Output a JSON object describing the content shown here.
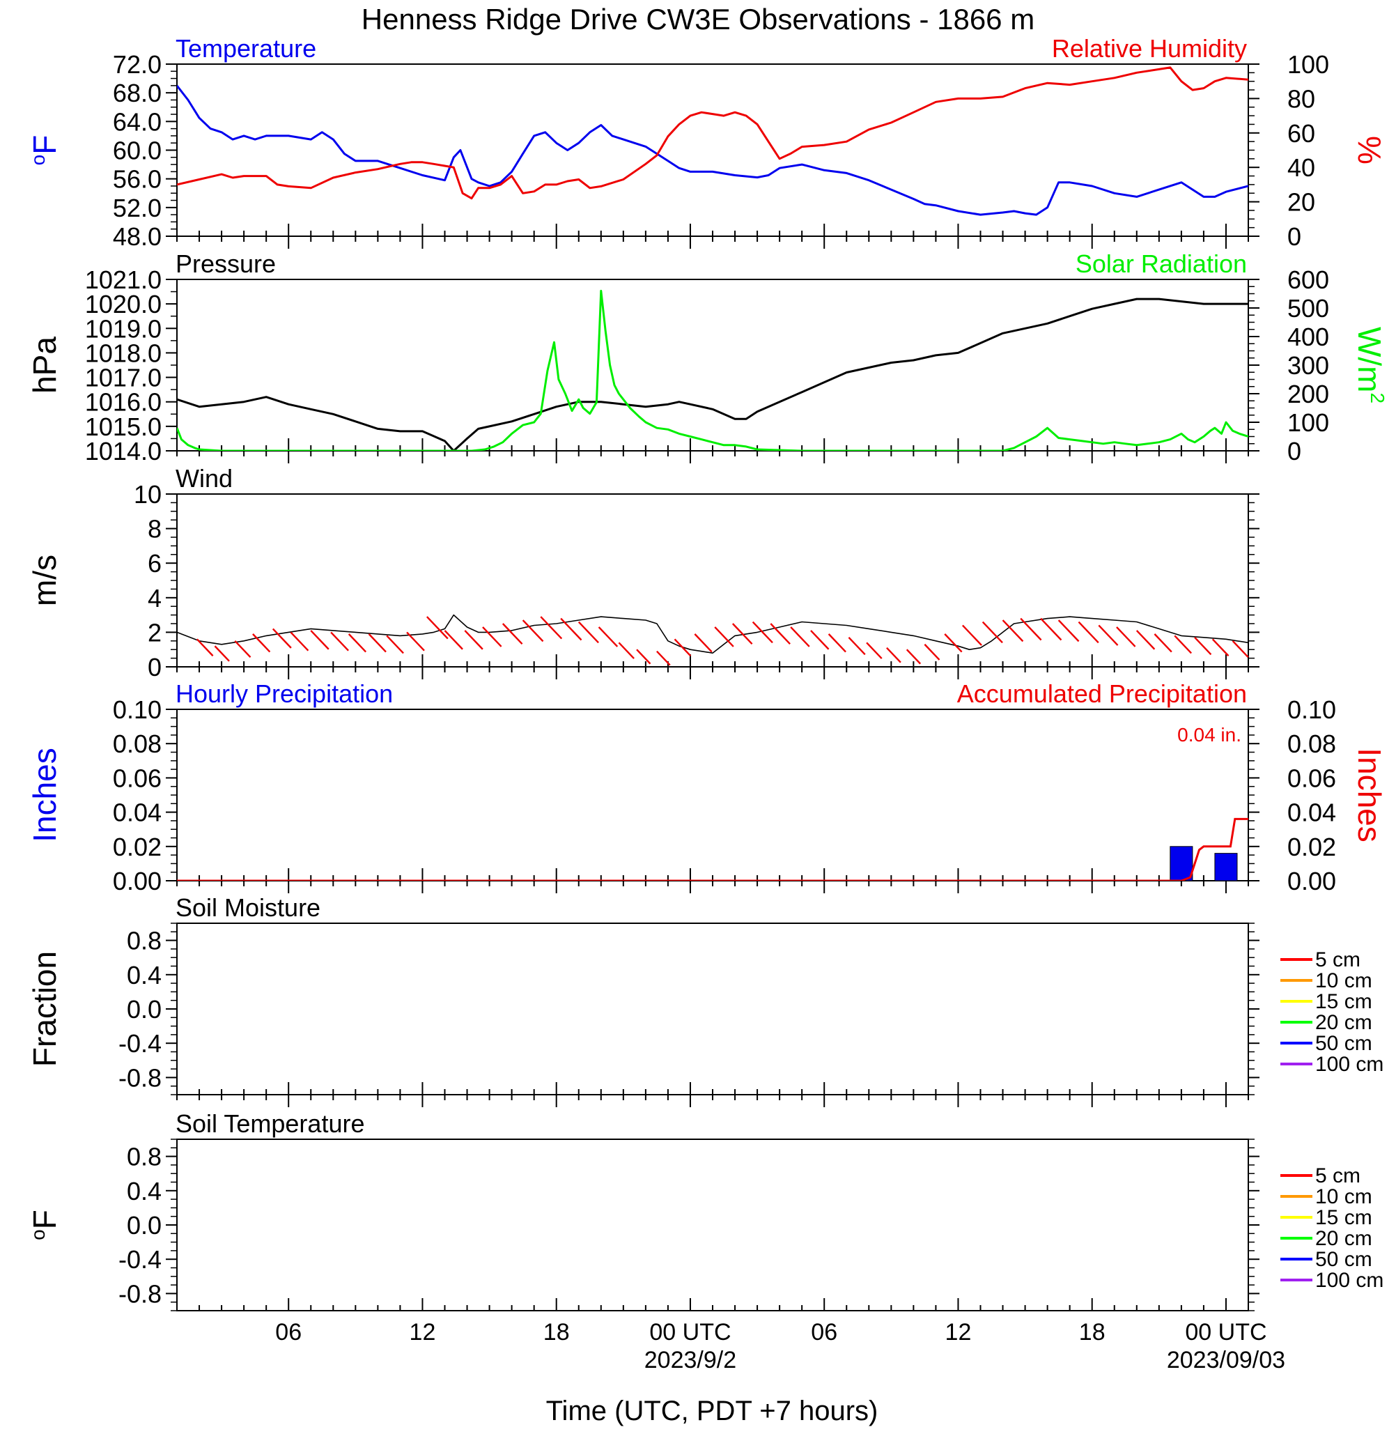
{
  "title": "Henness Ridge Drive CW3E Observations - 1866 m",
  "x_axis": {
    "label": "Time (UTC, PDT +7 hours)",
    "range_hours": [
      0,
      48
    ],
    "ticks": [
      {
        "h": 5,
        "label": "06"
      },
      {
        "h": 11,
        "label": "12"
      },
      {
        "h": 17,
        "label": "18"
      },
      {
        "h": 23,
        "label": "00 UTC"
      },
      {
        "h": 29,
        "label": "06"
      },
      {
        "h": 35,
        "label": "12"
      },
      {
        "h": 41,
        "label": "18"
      },
      {
        "h": 47,
        "label": "00 UTC"
      }
    ],
    "dates": [
      {
        "h": 23,
        "label": "2023/9/2"
      },
      {
        "h": 47,
        "label": "2023/09/03"
      }
    ]
  },
  "colors": {
    "blue": "#0000ee",
    "red": "#ee0000",
    "green": "#00ee00",
    "black": "#000000"
  },
  "legend_items": [
    {
      "label": "5 cm",
      "color": "#ff0000"
    },
    {
      "label": "10 cm",
      "color": "#ff9900"
    },
    {
      "label": "15 cm",
      "color": "#ffff00"
    },
    {
      "label": "20 cm",
      "color": "#00ff00"
    },
    {
      "label": "50 cm",
      "color": "#0000ff"
    },
    {
      "label": "100 cm",
      "color": "#a020f0"
    }
  ],
  "chart_data": [
    {
      "id": "temp_rh",
      "type": "line",
      "left_title": "Temperature",
      "right_title": "Relative Humidity",
      "left_unit": "oF",
      "right_unit": "%",
      "left_ylim": [
        48,
        72
      ],
      "left_ticks": [
        "72.0",
        "68.0",
        "64.0",
        "60.0",
        "56.0",
        "52.0",
        "48.0"
      ],
      "right_ylim": [
        0,
        100
      ],
      "right_ticks": [
        "100",
        "80",
        "60",
        "40",
        "20",
        "0"
      ],
      "series": [
        {
          "name": "Temperature",
          "axis": "left",
          "color": "#0000ee",
          "x": [
            0,
            0.5,
            1,
            1.5,
            2,
            2.5,
            3,
            3.5,
            4,
            5,
            6,
            6.5,
            7,
            7.5,
            8,
            9,
            10,
            11,
            12,
            12.4,
            12.7,
            13.2,
            13.5,
            14,
            14.5,
            15,
            15.5,
            16,
            16.5,
            17,
            17.5,
            18,
            18.5,
            19,
            19.5,
            20,
            21,
            22,
            22.5,
            23,
            24,
            25,
            26,
            26.5,
            27,
            28,
            29,
            30,
            31,
            32,
            33,
            33.5,
            34,
            35,
            36,
            37,
            37.5,
            38,
            38.5,
            39,
            39.5,
            40,
            41,
            42,
            43,
            44,
            45,
            46,
            46.5,
            47,
            48
          ],
          "y": [
            69,
            67,
            64.5,
            63,
            62.5,
            61.5,
            62,
            61.5,
            62,
            62,
            61.5,
            62.5,
            61.5,
            59.5,
            58.5,
            58.5,
            57.5,
            56.5,
            55.8,
            59,
            60,
            56,
            55.5,
            55,
            55.5,
            57,
            59.5,
            62,
            62.5,
            61,
            60,
            61,
            62.5,
            63.5,
            62,
            61.5,
            60.5,
            58.5,
            57.5,
            57,
            57,
            56.5,
            56.2,
            56.5,
            57.5,
            58,
            57.2,
            56.8,
            55.8,
            54.5,
            53.2,
            52.5,
            52.3,
            51.5,
            51,
            51.3,
            51.5,
            51.2,
            51,
            52,
            55.5,
            55.5,
            55,
            54,
            53.5,
            54.5,
            55.5,
            53.5,
            53.5,
            54.2,
            55
          ]
        },
        {
          "name": "Relative Humidity",
          "axis": "right",
          "color": "#ee0000",
          "x": [
            0,
            1,
            2,
            2.5,
            3,
            4,
            4.5,
            5,
            6,
            7,
            8,
            9,
            10,
            10.5,
            11,
            11.5,
            12.4,
            12.8,
            13.2,
            13.5,
            14,
            14.5,
            15,
            15.5,
            16,
            16.5,
            17,
            17.5,
            18,
            18.5,
            19,
            20,
            21,
            21.5,
            22,
            22.5,
            23,
            23.5,
            24,
            24.5,
            25,
            25.5,
            26,
            26.5,
            27,
            27.5,
            28,
            29,
            30,
            31,
            32,
            33,
            34,
            35,
            36,
            37,
            38,
            39,
            40,
            41,
            42,
            43,
            44,
            44.5,
            45,
            45.5,
            46,
            46.5,
            47,
            48
          ],
          "y": [
            30,
            33,
            36,
            34,
            35,
            35,
            30,
            29,
            28,
            34,
            37,
            39,
            42,
            43,
            43,
            42,
            40,
            25,
            22,
            28,
            28,
            30,
            35,
            25,
            26,
            30,
            30,
            32,
            33,
            28,
            29,
            33,
            42,
            47,
            58,
            65,
            70,
            72,
            71,
            70,
            72,
            70,
            65,
            55,
            45,
            48,
            52,
            53,
            55,
            62,
            66,
            72,
            78,
            80,
            80,
            81,
            86,
            89,
            88,
            90,
            92,
            95,
            97,
            98,
            90,
            85,
            86,
            90,
            92,
            91
          ]
        }
      ]
    },
    {
      "id": "pressure_solar",
      "type": "line",
      "left_title": "Pressure",
      "right_title": "Solar Radiation",
      "left_unit": "hPa",
      "right_unit": "W/m2",
      "left_ylim": [
        1014,
        1021
      ],
      "left_ticks": [
        "1021.0",
        "1020.0",
        "1019.0",
        "1018.0",
        "1017.0",
        "1016.0",
        "1015.0",
        "1014.0"
      ],
      "right_ylim": [
        0,
        600
      ],
      "right_ticks": [
        "600",
        "500",
        "400",
        "300",
        "200",
        "100",
        "0"
      ],
      "series": [
        {
          "name": "Pressure",
          "axis": "left",
          "color": "#000000",
          "x": [
            0,
            1,
            2,
            3,
            4,
            5,
            6,
            7,
            8,
            9,
            10,
            11,
            11.5,
            12,
            12.4,
            13,
            13.5,
            14,
            15,
            16,
            17,
            18,
            19,
            20,
            21,
            22,
            22.5,
            23,
            24,
            24.5,
            25,
            25.5,
            26,
            27,
            28,
            29,
            30,
            31,
            32,
            33,
            34,
            35,
            36,
            37,
            38,
            39,
            40,
            41,
            42,
            43,
            44,
            45,
            46,
            47,
            48
          ],
          "y": [
            1016.1,
            1015.8,
            1015.9,
            1016.0,
            1016.2,
            1015.9,
            1015.7,
            1015.5,
            1015.2,
            1014.9,
            1014.8,
            1014.8,
            1014.6,
            1014.4,
            1014.0,
            1014.5,
            1014.9,
            1015.0,
            1015.2,
            1015.5,
            1015.8,
            1016.0,
            1016.0,
            1015.9,
            1015.8,
            1015.9,
            1016.0,
            1015.9,
            1015.7,
            1015.5,
            1015.3,
            1015.3,
            1015.6,
            1016.0,
            1016.4,
            1016.8,
            1017.2,
            1017.4,
            1017.6,
            1017.7,
            1017.9,
            1018.0,
            1018.4,
            1018.8,
            1019.0,
            1019.2,
            1019.5,
            1019.8,
            1020.0,
            1020.2,
            1020.2,
            1020.1,
            1020.0,
            1020.0,
            1020.0
          ]
        },
        {
          "name": "Solar Radiation",
          "axis": "right",
          "color": "#00ee00",
          "x": [
            0,
            0.2,
            0.5,
            0.8,
            1,
            2,
            5,
            8,
            11,
            12.5,
            13.2,
            13.8,
            14.2,
            14.6,
            15,
            15.5,
            16,
            16.3,
            16.6,
            16.9,
            17.1,
            17.4,
            17.7,
            18,
            18.2,
            18.5,
            18.8,
            19,
            19.2,
            19.4,
            19.6,
            19.8,
            20,
            20.3,
            20.7,
            21,
            21.5,
            22,
            22.5,
            23,
            23.5,
            24,
            24.5,
            25,
            25.5,
            26,
            28,
            31,
            34,
            35.5,
            37,
            37.5,
            38,
            38.5,
            39,
            39.5,
            40,
            40.5,
            41,
            41.5,
            42,
            42.5,
            43,
            43.5,
            44,
            44.5,
            45,
            45.3,
            45.6,
            46,
            46.3,
            46.5,
            46.8,
            47,
            47.3,
            47.6,
            48
          ],
          "y": [
            80,
            40,
            20,
            10,
            5,
            0,
            0,
            0,
            0,
            0,
            0,
            5,
            15,
            30,
            60,
            90,
            100,
            130,
            280,
            380,
            250,
            200,
            140,
            180,
            150,
            130,
            170,
            560,
            420,
            300,
            230,
            200,
            180,
            150,
            120,
            100,
            80,
            75,
            60,
            50,
            40,
            30,
            20,
            20,
            15,
            5,
            0,
            0,
            0,
            0,
            0,
            10,
            30,
            50,
            80,
            45,
            40,
            35,
            30,
            25,
            30,
            25,
            20,
            25,
            30,
            40,
            60,
            40,
            30,
            50,
            70,
            80,
            60,
            100,
            70,
            60,
            50
          ]
        }
      ]
    },
    {
      "id": "wind",
      "type": "line",
      "left_title": "Wind",
      "left_unit": "m/s",
      "left_ylim": [
        0,
        10
      ],
      "left_ticks": [
        "10",
        "8",
        "6",
        "4",
        "2",
        "0"
      ],
      "series": [
        {
          "name": "Wind",
          "axis": "left",
          "color": "#000000",
          "x": [
            0,
            1,
            2,
            3,
            4,
            5,
            6,
            7,
            8,
            9,
            10,
            11,
            11.5,
            12,
            12.4,
            13,
            13.5,
            14,
            15,
            16,
            17,
            18,
            19,
            20,
            21,
            21.5,
            22,
            22.5,
            23,
            23.5,
            24,
            24.5,
            25,
            26,
            27,
            28,
            29,
            30,
            31,
            32,
            33,
            34,
            35,
            35.5,
            36,
            36.5,
            37,
            37.5,
            38,
            39,
            40,
            41,
            42,
            43,
            44,
            45,
            46,
            47,
            48
          ],
          "y": [
            2.0,
            1.5,
            1.3,
            1.5,
            1.8,
            2.0,
            2.2,
            2.1,
            2.0,
            1.9,
            1.8,
            1.9,
            2.0,
            2.2,
            3.0,
            2.3,
            2.0,
            2.0,
            2.1,
            2.4,
            2.5,
            2.7,
            2.9,
            2.8,
            2.7,
            2.5,
            1.5,
            1.2,
            1.0,
            0.9,
            0.8,
            1.3,
            1.8,
            2.0,
            2.3,
            2.6,
            2.5,
            2.4,
            2.2,
            2.0,
            1.8,
            1.5,
            1.2,
            1.0,
            1.1,
            1.5,
            2.0,
            2.5,
            2.6,
            2.8,
            2.9,
            2.8,
            2.7,
            2.6,
            2.2,
            1.8,
            1.7,
            1.6,
            1.4
          ]
        }
      ],
      "barbs": {
        "dx": [
          0.9,
          1.7,
          2.6,
          3.4,
          4.3,
          5.1,
          6.0,
          6.9,
          7.7,
          8.6,
          9.4,
          10.3,
          11.2,
          12.0,
          12.9,
          13.7,
          14.6,
          15.5,
          16.3,
          17.2,
          18.0,
          18.9,
          19.8,
          20.6,
          21.5,
          22.3,
          23.2,
          24.1,
          24.9,
          25.8,
          26.6,
          27.5,
          28.4,
          29.2,
          30.1,
          30.9,
          31.8,
          32.7,
          33.5,
          34.4,
          35.2,
          36.1,
          37.0,
          37.8,
          38.7,
          39.5,
          40.4,
          41.3,
          42.1,
          43.0,
          43.8,
          44.7,
          45.6,
          46.4,
          47.3
        ],
        "speed": [
          1.6,
          1.2,
          1.5,
          1.9,
          2.2,
          2.0,
          2.1,
          2.0,
          1.9,
          1.9,
          1.8,
          2.0,
          2.9,
          2.1,
          2.1,
          2.3,
          2.5,
          2.7,
          2.9,
          2.8,
          2.6,
          2.3,
          1.4,
          1.0,
          0.9,
          1.6,
          1.9,
          2.3,
          2.5,
          2.6,
          2.5,
          2.3,
          2.1,
          1.9,
          1.7,
          1.4,
          1.1,
          1.0,
          1.3,
          1.9,
          2.4,
          2.6,
          2.7,
          2.8,
          2.8,
          2.7,
          2.6,
          2.4,
          2.3,
          2.1,
          1.9,
          1.8,
          1.7,
          1.6,
          1.5
        ]
      }
    },
    {
      "id": "precip",
      "type": "bar",
      "left_title": "Hourly Precipitation",
      "right_title": "Accumulated Precipitation",
      "annotation": "0.04 in.",
      "left_unit": "Inches",
      "right_unit": "Inches",
      "left_ylim": [
        0,
        0.1
      ],
      "left_ticks": [
        "0.10",
        "0.08",
        "0.06",
        "0.04",
        "0.02",
        "0.00"
      ],
      "right_ylim": [
        0,
        0.1
      ],
      "right_ticks": [
        "0.10",
        "0.08",
        "0.06",
        "0.04",
        "0.02",
        "0.00"
      ],
      "hourly": {
        "x": [
          45,
          47
        ],
        "values": [
          0.02,
          0.016
        ]
      },
      "accum": {
        "x": [
          0,
          45.0,
          45.4,
          45.6,
          45.8,
          46.0,
          46.5,
          47.0,
          47.2,
          47.4,
          48
        ],
        "y": [
          0,
          0,
          0.002,
          0.01,
          0.018,
          0.02,
          0.02,
          0.02,
          0.02,
          0.036,
          0.036
        ]
      }
    },
    {
      "id": "soil_moisture",
      "type": "line",
      "left_title": "Soil Moisture",
      "left_unit": "Fraction",
      "left_ylim": [
        -1,
        1
      ],
      "left_ticks": [
        "0.8",
        "0.4",
        "0.0",
        "-0.4",
        "-0.8"
      ],
      "series": []
    },
    {
      "id": "soil_temp",
      "type": "line",
      "left_title": "Soil Temperature",
      "left_unit": "oF",
      "left_ylim": [
        -1,
        1
      ],
      "left_ticks": [
        "0.8",
        "0.4",
        "0.0",
        "-0.4",
        "-0.8"
      ],
      "series": []
    }
  ]
}
